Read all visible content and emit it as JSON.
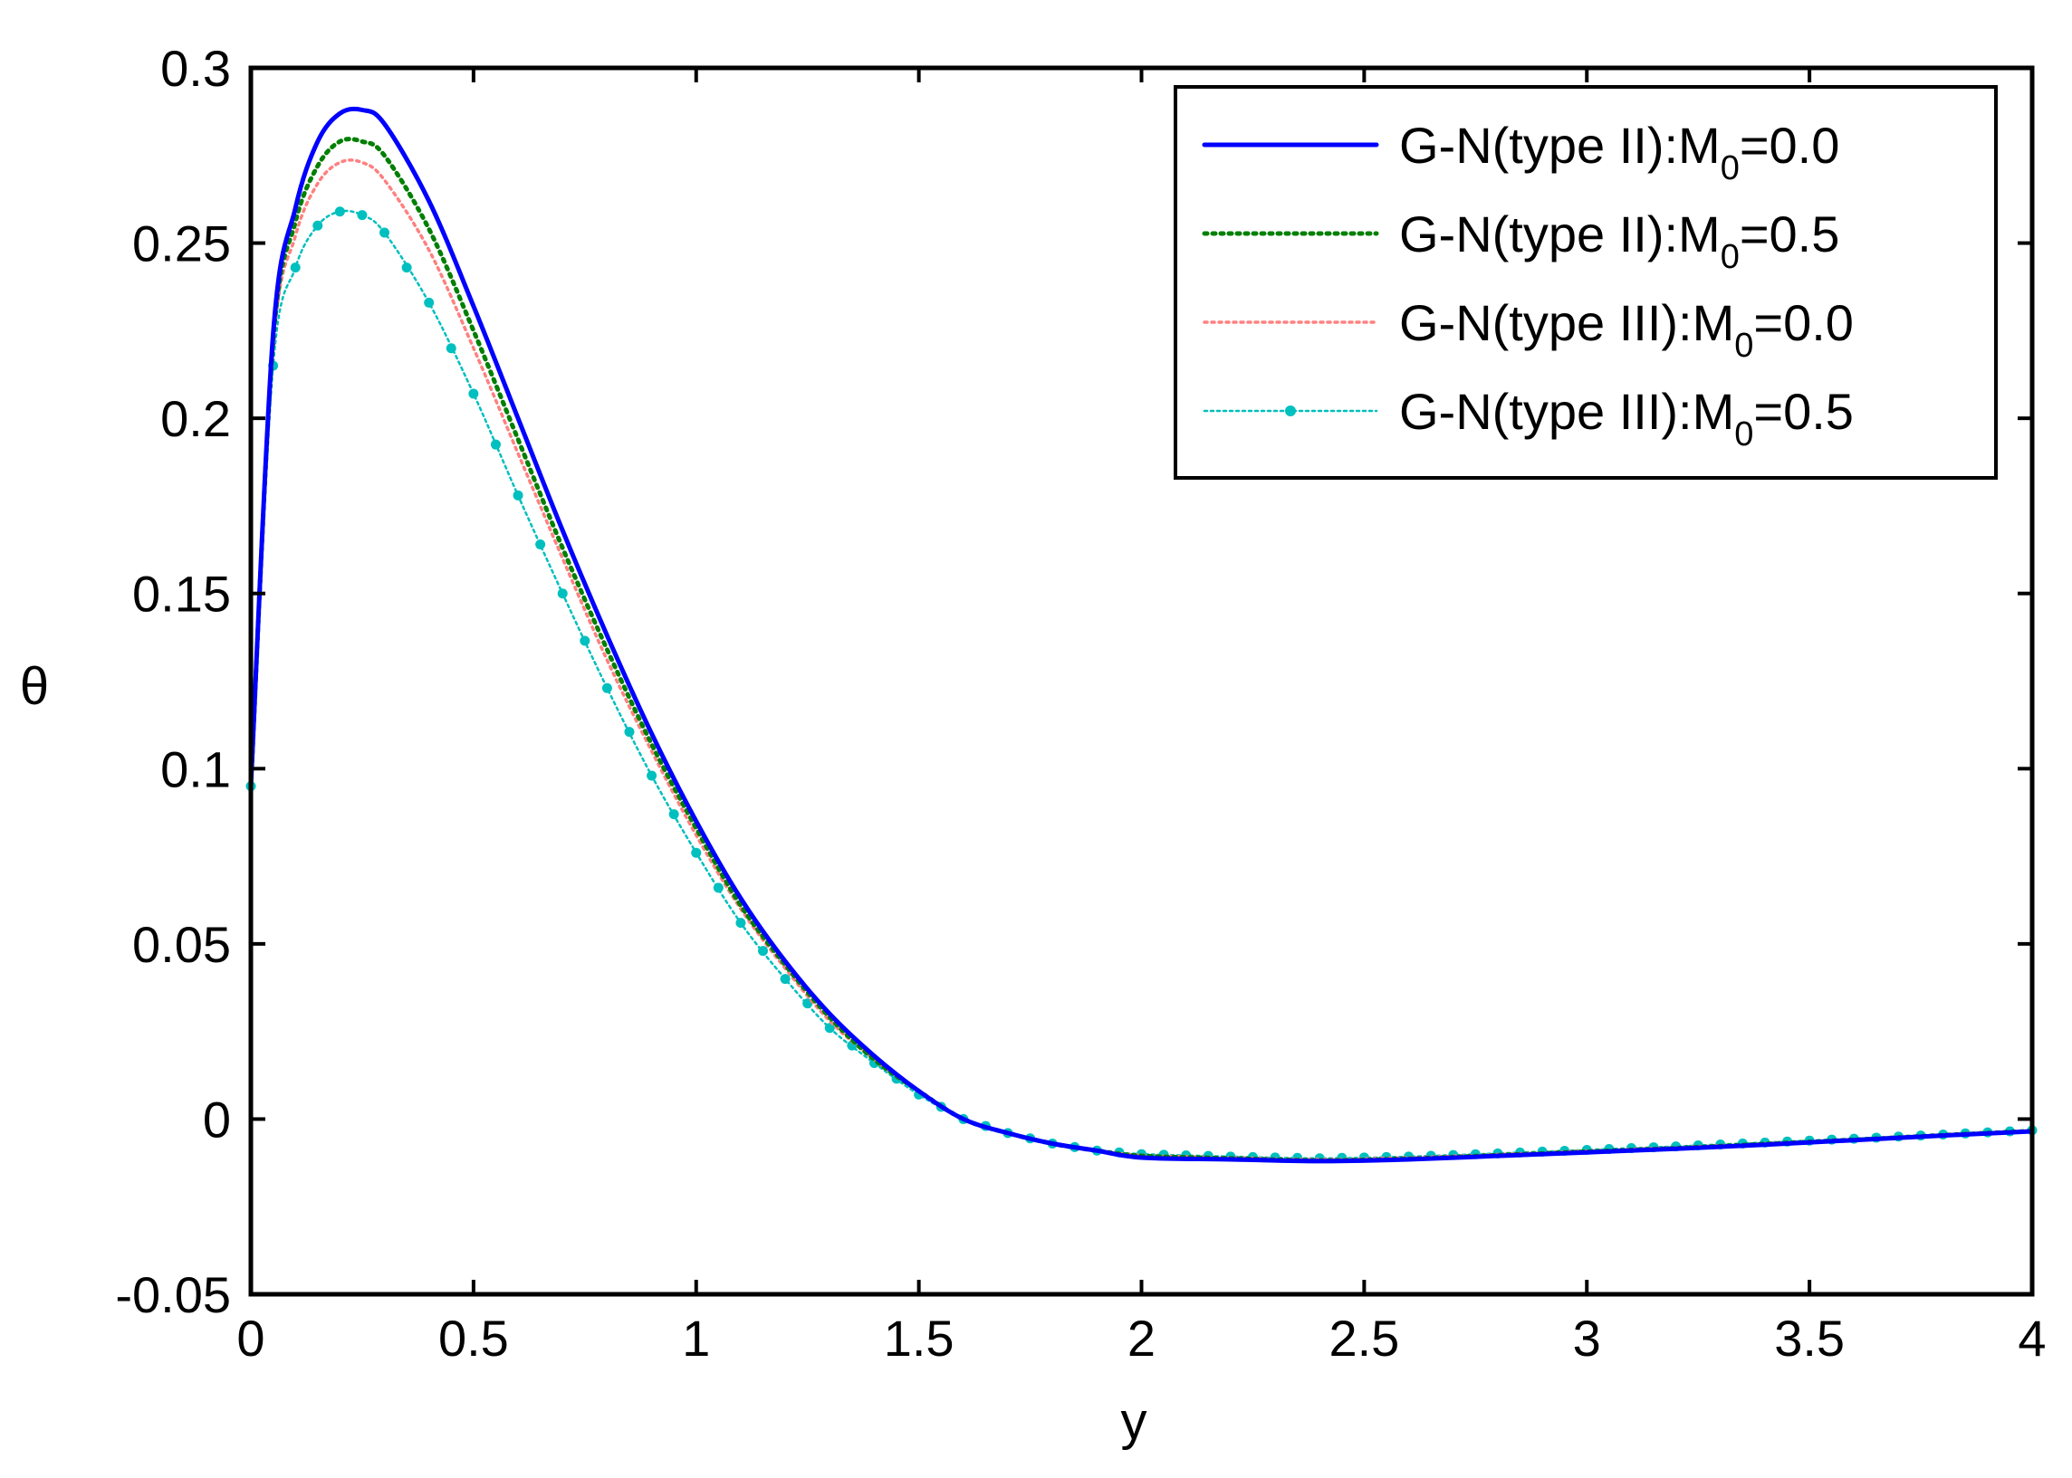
{
  "chart_data": {
    "type": "line",
    "title": "",
    "xlabel": "y",
    "ylabel": "θ",
    "xlim": [
      0,
      4
    ],
    "ylim": [
      -0.05,
      0.3
    ],
    "x_ticks": [
      "0",
      "0.5",
      "1",
      "1.5",
      "2",
      "2.5",
      "3",
      "3.5",
      "4"
    ],
    "y_ticks": [
      "-0.05",
      "0",
      "0.05",
      "0.1",
      "0.15",
      "0.2",
      "0.25",
      "0.3"
    ],
    "grid": false,
    "legend_position": "top-right",
    "series": [
      {
        "name": "G-N(type II):M0=0.0",
        "label_main": "G-N(type II):M",
        "label_sub": "0",
        "label_tail": "=0.0",
        "color": "#0000ff",
        "style": "solid",
        "x": [
          0,
          0.05,
          0.1,
          0.15,
          0.2,
          0.25,
          0.3,
          0.4,
          0.5,
          0.6,
          0.7,
          0.8,
          0.9,
          1.0,
          1.1,
          1.2,
          1.3,
          1.4,
          1.5,
          1.6,
          1.7,
          1.8,
          1.9,
          2.0,
          2.2,
          2.4,
          2.6,
          2.8,
          3.0,
          3.2,
          3.4,
          3.6,
          3.8,
          4.0
        ],
        "values": [
          0.095,
          0.224,
          0.26,
          0.279,
          0.287,
          0.288,
          0.284,
          0.262,
          0.232,
          0.2,
          0.168,
          0.138,
          0.11,
          0.085,
          0.063,
          0.045,
          0.03,
          0.018,
          0.008,
          0.0,
          -0.004,
          -0.007,
          -0.009,
          -0.011,
          -0.0115,
          -0.012,
          -0.0115,
          -0.0105,
          -0.0095,
          -0.0085,
          -0.0073,
          -0.006,
          -0.0047,
          -0.0035
        ]
      },
      {
        "name": "G-N(type II):M0=0.5",
        "label_main": "G-N(type II):M",
        "label_sub": "0",
        "label_tail": "=0.5",
        "color": "#007f00",
        "style": "dotted",
        "x": [
          0,
          0.05,
          0.1,
          0.15,
          0.2,
          0.25,
          0.3,
          0.4,
          0.5,
          0.6,
          0.7,
          0.8,
          0.9,
          1.0,
          1.1,
          1.2,
          1.3,
          1.4,
          1.5,
          1.6,
          1.7,
          1.8,
          1.9,
          2.0,
          2.2,
          2.4,
          2.6,
          2.8,
          3.0,
          3.2,
          3.4,
          3.6,
          3.8,
          4.0
        ],
        "values": [
          0.095,
          0.222,
          0.256,
          0.272,
          0.279,
          0.279,
          0.275,
          0.254,
          0.225,
          0.194,
          0.163,
          0.134,
          0.107,
          0.083,
          0.061,
          0.044,
          0.029,
          0.017,
          0.008,
          0.0,
          -0.004,
          -0.007,
          -0.009,
          -0.0105,
          -0.0112,
          -0.0118,
          -0.0113,
          -0.0103,
          -0.0093,
          -0.0083,
          -0.0071,
          -0.0059,
          -0.0046,
          -0.0034
        ]
      },
      {
        "name": "G-N(type III):M0=0.0",
        "label_main": "G-N(type III):M",
        "label_sub": "0",
        "label_tail": "=0.0",
        "color": "#ff8080",
        "style": "dotted",
        "x": [
          0,
          0.05,
          0.1,
          0.15,
          0.2,
          0.25,
          0.3,
          0.4,
          0.5,
          0.6,
          0.7,
          0.8,
          0.9,
          1.0,
          1.1,
          1.2,
          1.3,
          1.4,
          1.5,
          1.6,
          1.7,
          1.8,
          1.9,
          2.0,
          2.2,
          2.4,
          2.6,
          2.8,
          3.0,
          3.2,
          3.4,
          3.6,
          3.8,
          4.0
        ],
        "values": [
          0.095,
          0.22,
          0.252,
          0.267,
          0.273,
          0.273,
          0.268,
          0.248,
          0.22,
          0.19,
          0.16,
          0.131,
          0.105,
          0.081,
          0.06,
          0.043,
          0.028,
          0.017,
          0.008,
          0.0,
          -0.004,
          -0.007,
          -0.009,
          -0.0103,
          -0.011,
          -0.0115,
          -0.011,
          -0.0101,
          -0.0091,
          -0.0081,
          -0.007,
          -0.0058,
          -0.0045,
          -0.0033
        ]
      },
      {
        "name": "G-N(type III):M0=0.5",
        "label_main": "G-N(type III):M",
        "label_sub": "0",
        "label_tail": "=0.5",
        "color": "#00bfbf",
        "style": "dot-marker",
        "x": [
          0,
          0.05,
          0.1,
          0.15,
          0.2,
          0.25,
          0.3,
          0.4,
          0.5,
          0.6,
          0.7,
          0.8,
          0.9,
          1.0,
          1.1,
          1.2,
          1.3,
          1.4,
          1.5,
          1.6,
          1.7,
          1.8,
          1.9,
          2.0,
          2.2,
          2.4,
          2.6,
          2.8,
          3.0,
          3.2,
          3.4,
          3.6,
          3.8,
          4.0
        ],
        "values": [
          0.095,
          0.215,
          0.243,
          0.255,
          0.259,
          0.258,
          0.253,
          0.233,
          0.207,
          0.178,
          0.15,
          0.123,
          0.098,
          0.076,
          0.056,
          0.04,
          0.026,
          0.016,
          0.007,
          0.0,
          -0.004,
          -0.007,
          -0.009,
          -0.01,
          -0.0107,
          -0.0112,
          -0.0107,
          -0.0098,
          -0.0088,
          -0.0078,
          -0.0067,
          -0.0056,
          -0.0044,
          -0.0032
        ]
      }
    ]
  }
}
